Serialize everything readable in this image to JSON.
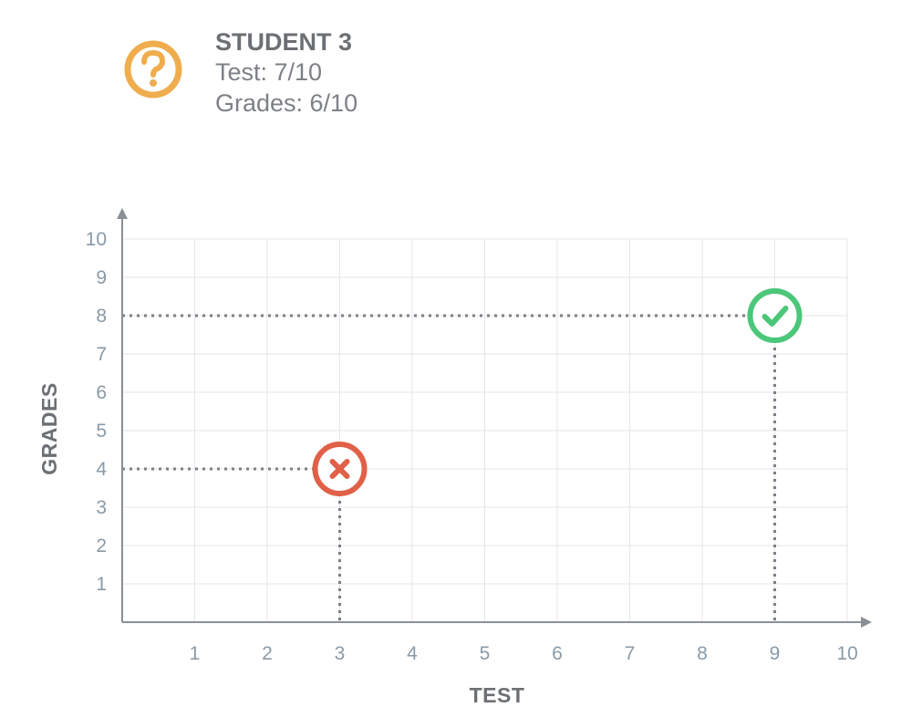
{
  "student": {
    "title": "STUDENT 3",
    "test_line": "Test: 7/10",
    "grades_line": "Grades: 6/10",
    "badge_icon": "question-mark-icon",
    "badge_color": "#f0ad4e"
  },
  "chart_data": {
    "type": "scatter",
    "title": "",
    "xlabel": "TEST",
    "ylabel": "GRADES",
    "xlim": [
      0,
      10
    ],
    "ylim": [
      0,
      10
    ],
    "x_ticks": [
      "1",
      "2",
      "3",
      "4",
      "5",
      "6",
      "7",
      "8",
      "9",
      "10"
    ],
    "y_ticks": [
      "1",
      "2",
      "3",
      "4",
      "5",
      "6",
      "7",
      "8",
      "9",
      "10"
    ],
    "grid": true,
    "points": [
      {
        "x": 3,
        "y": 4,
        "icon": "cross-icon",
        "color": "#e06048"
      },
      {
        "x": 9,
        "y": 8,
        "icon": "check-icon",
        "color": "#4cc77a"
      }
    ]
  }
}
